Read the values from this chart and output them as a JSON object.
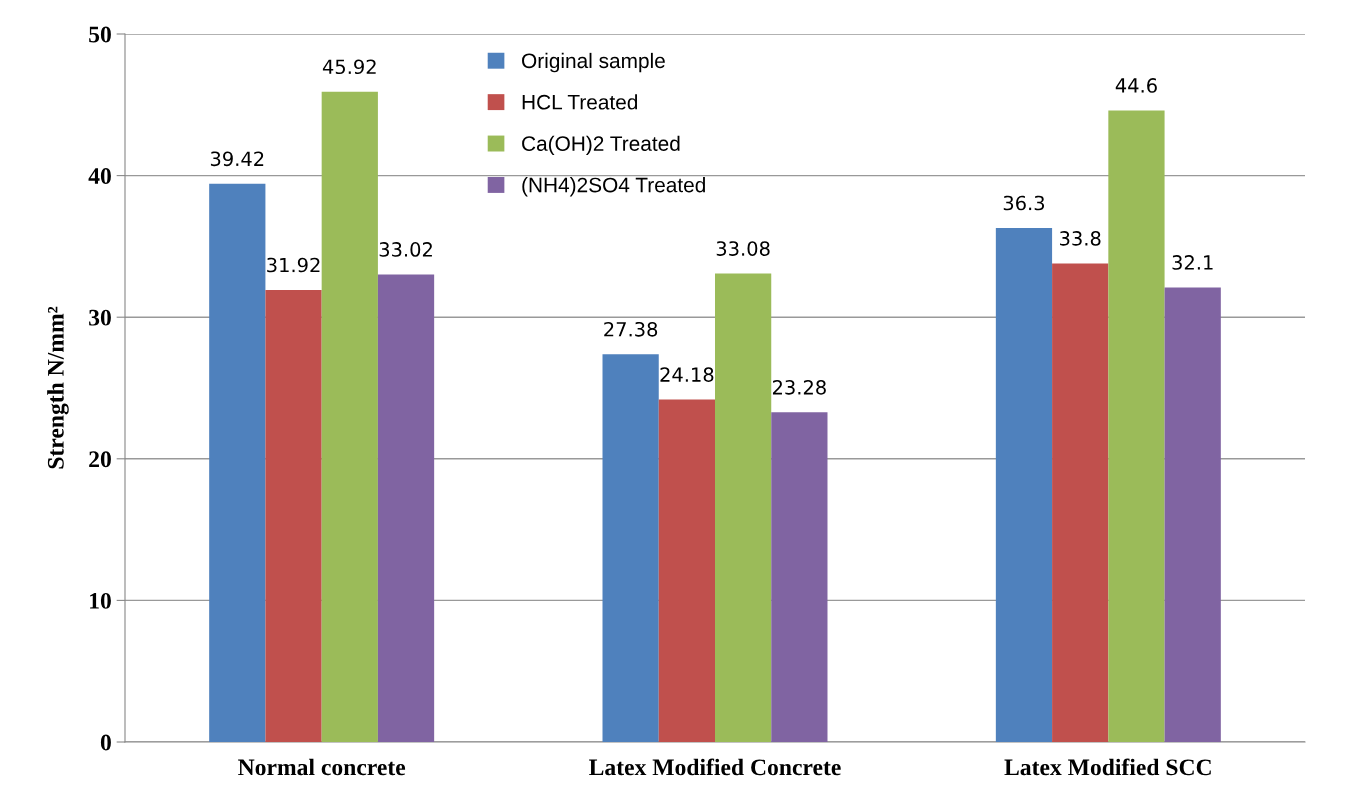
{
  "chart_data": {
    "type": "bar",
    "ylabel": "Strength N/mm²",
    "categories": [
      "Normal concrete",
      "Latex Modified Concrete",
      "Latex Modified SCC"
    ],
    "series": [
      {
        "name": "Original sample",
        "color": "#4f81bd",
        "values": [
          39.42,
          27.38,
          36.3
        ]
      },
      {
        "name": "HCL Treated",
        "color": "#c0504d",
        "values": [
          31.92,
          24.18,
          33.8
        ]
      },
      {
        "name": "Ca(OH)2 Treated",
        "color": "#9bbb59",
        "values": [
          45.92,
          33.08,
          44.6
        ]
      },
      {
        "name": "(NH4)2SO4 Treated",
        "color": "#8064a2",
        "values": [
          33.02,
          23.28,
          32.1
        ]
      }
    ],
    "ylim": [
      0,
      50
    ],
    "yticks": [
      0,
      10,
      20,
      30,
      40,
      50
    ],
    "grid": "y",
    "legend": "top",
    "data_labels": true
  }
}
